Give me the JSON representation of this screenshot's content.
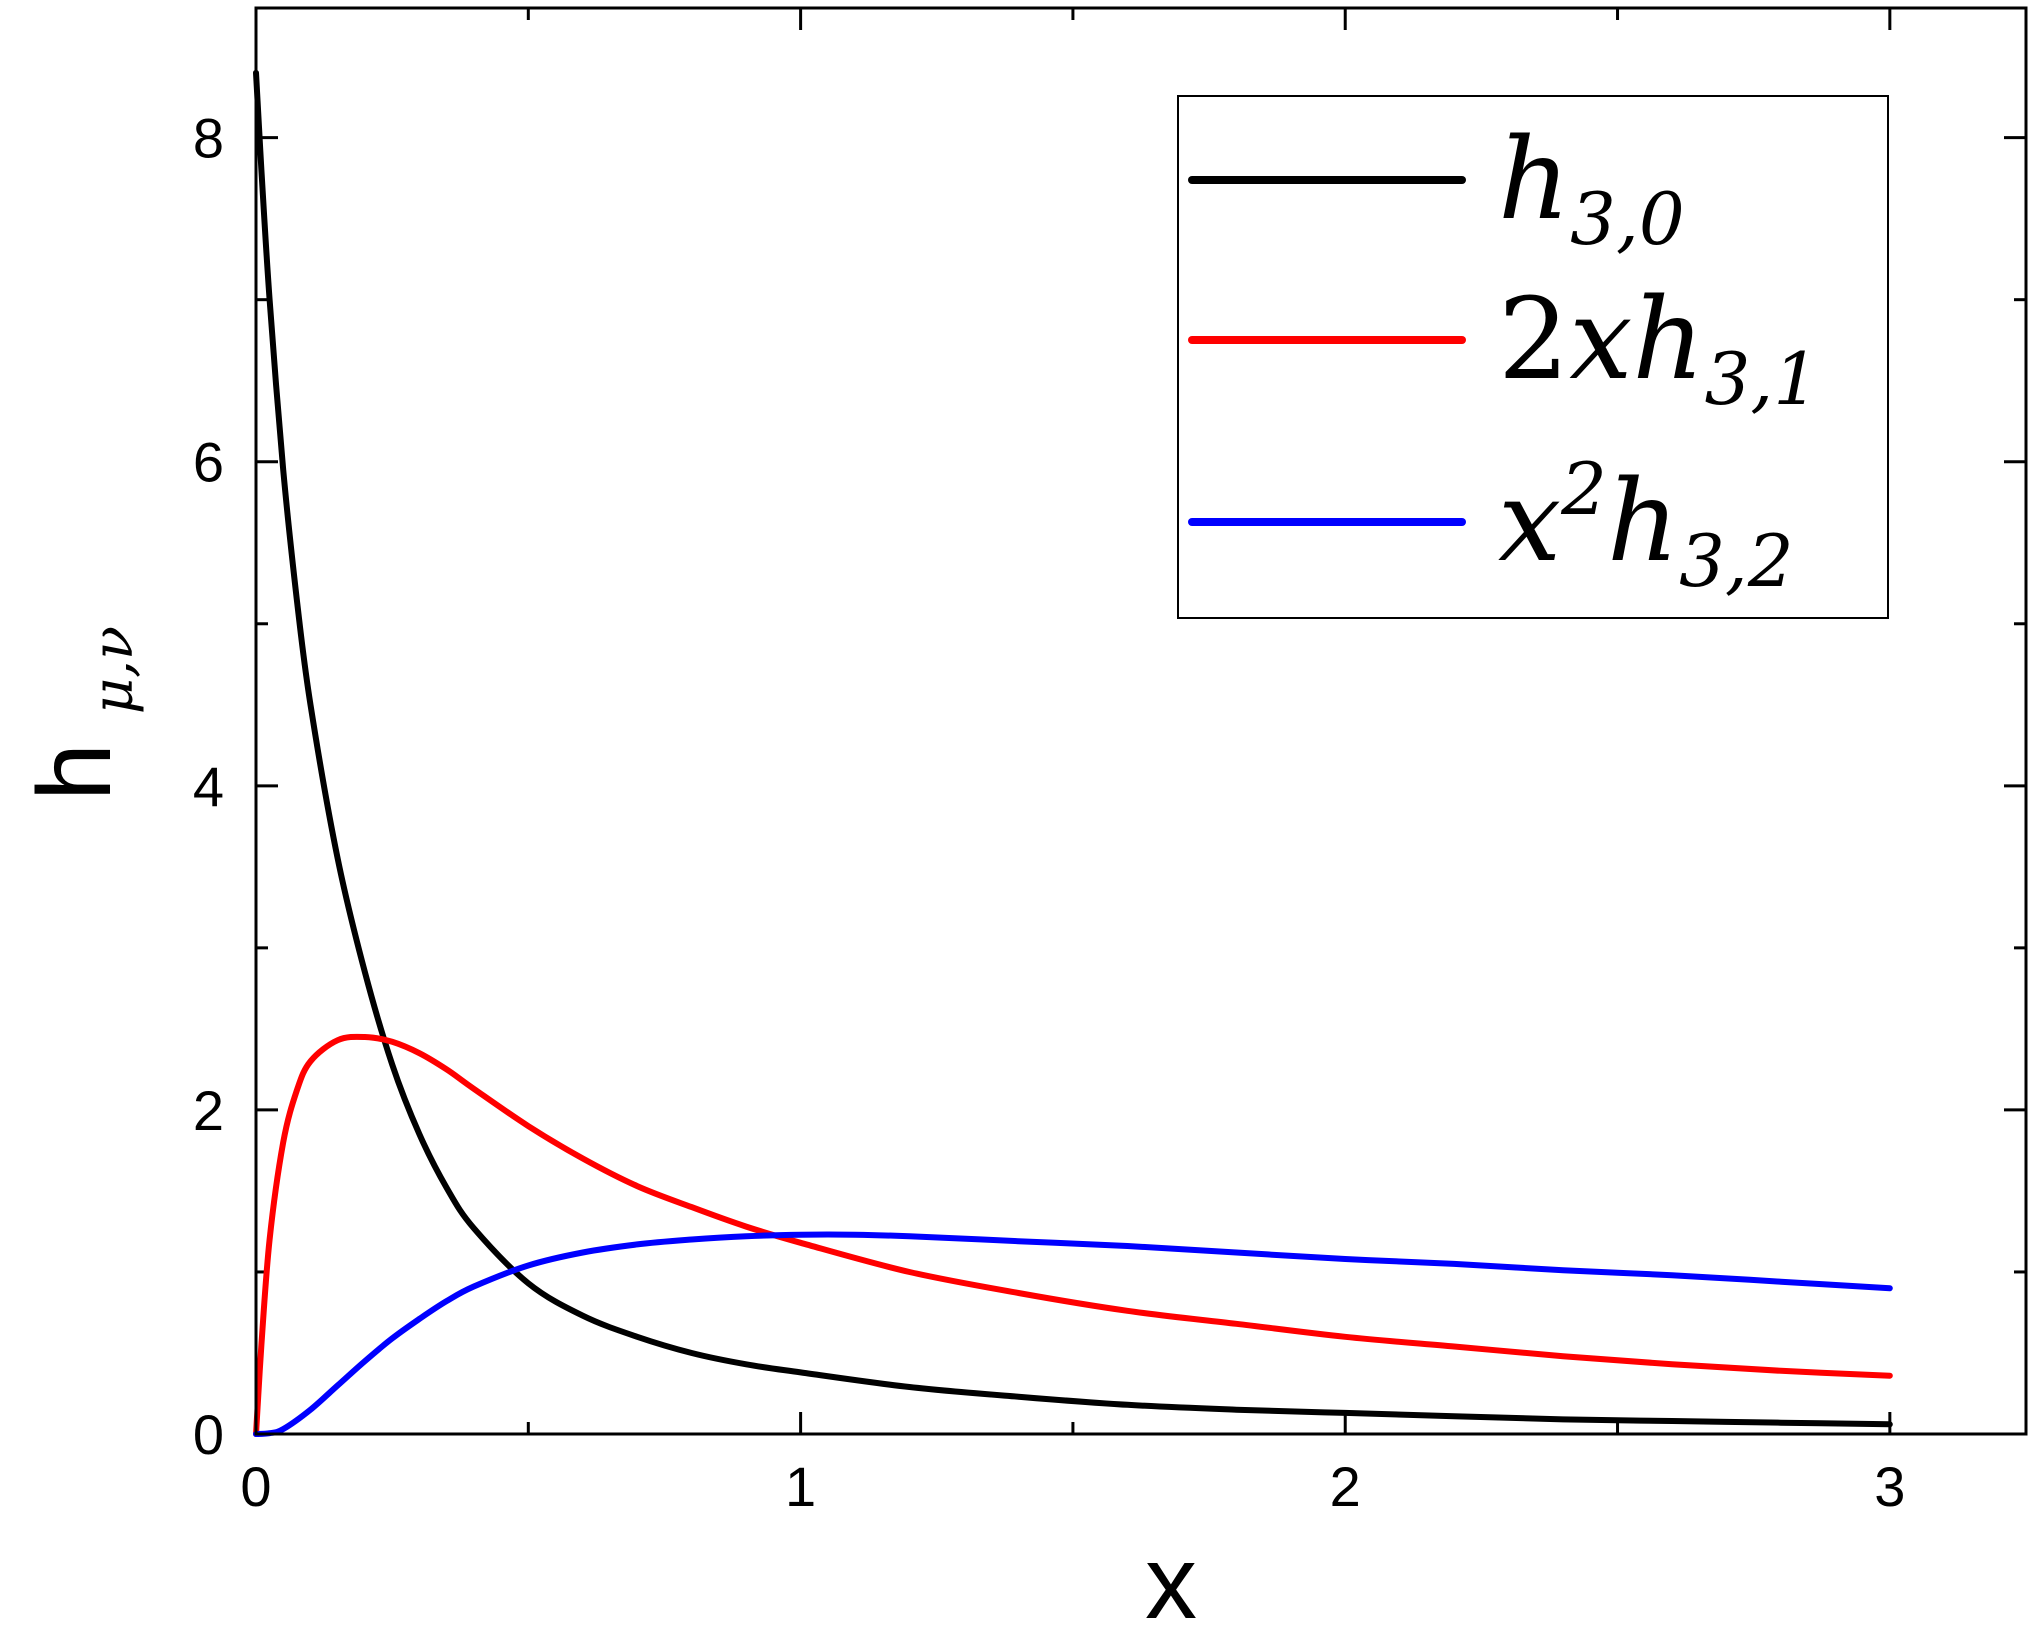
{
  "chart_data": {
    "type": "line",
    "xlabel": "x",
    "ylabel": {
      "main": "h",
      "sub": "μ,ν"
    },
    "xlim": [
      0,
      3.25
    ],
    "ylim": [
      0,
      8.8
    ],
    "xticks": [
      {
        "value": 0,
        "label": "0"
      },
      {
        "value": 1,
        "label": "1"
      },
      {
        "value": 2,
        "label": "2"
      },
      {
        "value": 3,
        "label": "3"
      }
    ],
    "yticks": [
      {
        "value": 0,
        "label": "0"
      },
      {
        "value": 2,
        "label": "2"
      },
      {
        "value": 4,
        "label": "4"
      },
      {
        "value": 6,
        "label": "6"
      },
      {
        "value": 8,
        "label": "8"
      }
    ],
    "x_minor_step": 0.5,
    "y_minor_step": 1,
    "grid": false,
    "legend_position": "top-right",
    "series": [
      {
        "name": "h_{3,0}",
        "label_parts": [
          {
            "t": "h",
            "k": "base"
          },
          {
            "t": "3,0",
            "k": "sub"
          }
        ],
        "color": "#000000",
        "x": [
          0.0,
          0.01,
          0.025,
          0.05,
          0.075,
          0.1,
          0.15,
          0.2,
          0.25,
          0.3,
          0.35,
          0.4,
          0.5,
          0.6,
          0.7,
          0.8,
          0.9,
          1.0,
          1.2,
          1.4,
          1.6,
          1.8,
          2.0,
          2.2,
          2.4,
          2.6,
          2.8,
          3.0
        ],
        "values": [
          8.4,
          7.8,
          7.0,
          5.95,
          5.15,
          4.5,
          3.55,
          2.85,
          2.28,
          1.85,
          1.52,
          1.27,
          0.93,
          0.73,
          0.6,
          0.5,
          0.43,
          0.38,
          0.29,
          0.23,
          0.18,
          0.15,
          0.13,
          0.11,
          0.09,
          0.08,
          0.07,
          0.06
        ]
      },
      {
        "name": "2xh_{3,1}",
        "label_parts": [
          {
            "t": "2",
            "k": "num"
          },
          {
            "t": "xh",
            "k": "base"
          },
          {
            "t": "3,1",
            "k": "sub"
          }
        ],
        "color": "#ff0000",
        "x": [
          0.0,
          0.01,
          0.025,
          0.05,
          0.075,
          0.1,
          0.15,
          0.2,
          0.25,
          0.3,
          0.35,
          0.4,
          0.5,
          0.6,
          0.7,
          0.8,
          0.9,
          1.0,
          1.2,
          1.4,
          1.6,
          1.8,
          2.0,
          2.2,
          2.4,
          2.6,
          2.8,
          3.0
        ],
        "values": [
          0.0,
          0.55,
          1.2,
          1.8,
          2.12,
          2.3,
          2.43,
          2.45,
          2.42,
          2.35,
          2.25,
          2.13,
          1.9,
          1.7,
          1.53,
          1.4,
          1.28,
          1.18,
          1.0,
          0.87,
          0.76,
          0.68,
          0.6,
          0.54,
          0.48,
          0.43,
          0.39,
          0.36
        ]
      },
      {
        "name": "x^2h_{3,2}",
        "label_parts": [
          {
            "t": "x",
            "k": "base"
          },
          {
            "t": "2",
            "k": "sup"
          },
          {
            "t": "h",
            "k": "base"
          },
          {
            "t": "3,2",
            "k": "sub"
          }
        ],
        "color": "#0000ff",
        "x": [
          0.0,
          0.025,
          0.05,
          0.1,
          0.15,
          0.2,
          0.25,
          0.3,
          0.35,
          0.4,
          0.5,
          0.6,
          0.7,
          0.8,
          0.9,
          1.0,
          1.1,
          1.2,
          1.4,
          1.6,
          1.8,
          2.0,
          2.2,
          2.4,
          2.6,
          2.8,
          3.0
        ],
        "values": [
          0.0,
          0.005,
          0.03,
          0.15,
          0.3,
          0.45,
          0.59,
          0.71,
          0.82,
          0.91,
          1.04,
          1.12,
          1.17,
          1.2,
          1.22,
          1.23,
          1.23,
          1.22,
          1.19,
          1.16,
          1.12,
          1.08,
          1.05,
          1.01,
          0.98,
          0.94,
          0.9
        ]
      }
    ]
  }
}
